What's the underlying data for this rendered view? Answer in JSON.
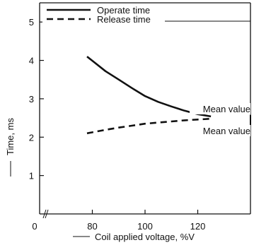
{
  "chart_data": {
    "type": "line",
    "title": "",
    "xlabel": "Coil applied voltage, %V",
    "ylabel": "Time, ms",
    "xlim": [
      60,
      140
    ],
    "ylim": [
      0,
      5.5
    ],
    "x_axis_break": true,
    "x_origin_label": "0",
    "x_ticks": [
      80,
      100,
      120
    ],
    "y_ticks": [
      1,
      2,
      3,
      4,
      5
    ],
    "grid": false,
    "legend_position": "top-left",
    "series": [
      {
        "name": "Operate time",
        "style": "solid",
        "x": [
          78,
          85,
          90,
          95,
          100,
          105,
          110,
          115,
          120,
          125
        ],
        "y": [
          4.1,
          3.72,
          3.5,
          3.28,
          3.07,
          2.92,
          2.8,
          2.69,
          2.6,
          2.54
        ]
      },
      {
        "name": "Release time",
        "style": "dashed",
        "x": [
          78,
          85,
          90,
          95,
          100,
          105,
          110,
          115,
          120,
          125
        ],
        "y": [
          2.1,
          2.19,
          2.25,
          2.3,
          2.35,
          2.38,
          2.41,
          2.44,
          2.46,
          2.48
        ]
      }
    ],
    "annotations": [
      "Mean value",
      "Mean value"
    ]
  }
}
